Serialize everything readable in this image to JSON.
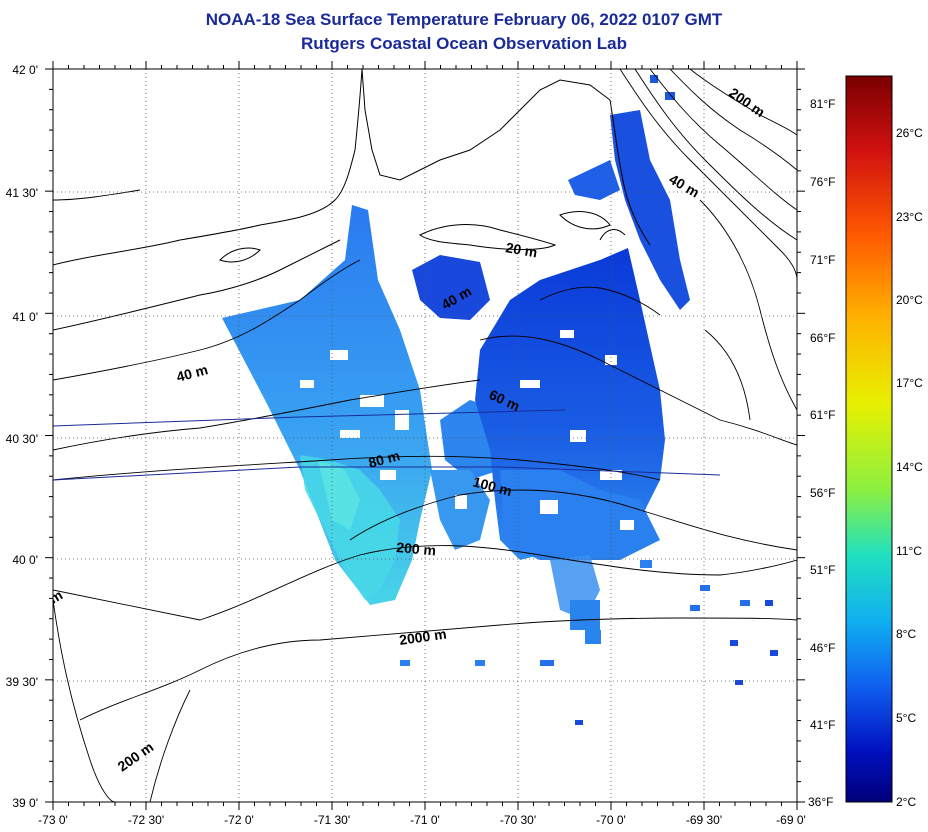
{
  "header": {
    "title": "NOAA-18 Sea Surface Temperature February 06, 2022 0107 GMT",
    "subtitle": "Rutgers Coastal Ocean Observation Lab"
  },
  "axes": {
    "lat_labels": [
      "42 0'",
      "41 30'",
      "41 0'",
      "40 30'",
      "40 0'",
      "39 30'",
      "39 0'"
    ],
    "lon_labels": [
      "-73 0'",
      "-72 30'",
      "-72 0'",
      "-71 30'",
      "-71 0'",
      "-70 30'",
      "-70 0'",
      "-69 30'",
      "-69 0'"
    ],
    "fahrenheit_labels": [
      "81°F",
      "76°F",
      "71°F",
      "66°F",
      "61°F",
      "56°F",
      "51°F",
      "46°F",
      "41°F",
      "36°F"
    ]
  },
  "colorbar": {
    "celsius_labels": [
      "26°C",
      "23°C",
      "20°C",
      "17°C",
      "14°C",
      "11°C",
      "8°C",
      "5°C",
      "2°C"
    ],
    "colors": [
      "#7a0000",
      "#d01010",
      "#ff5a00",
      "#ffb000",
      "#e8f000",
      "#8cf040",
      "#20e0c0",
      "#10b0f0",
      "#1060f0",
      "#0010c0",
      "#00007a"
    ]
  },
  "contour_labels": [
    "200 m",
    "40 m",
    "20 m",
    "40 m",
    "40 m",
    "60 m",
    "80 m",
    "100 m",
    "200 m",
    "2000 m",
    "200 m",
    "m"
  ],
  "data_colors": {
    "deep_blue": "#0a3cd8",
    "mid_blue": "#1e6ee8",
    "light_blue": "#3c9cf0",
    "cyan": "#40d0e8"
  }
}
